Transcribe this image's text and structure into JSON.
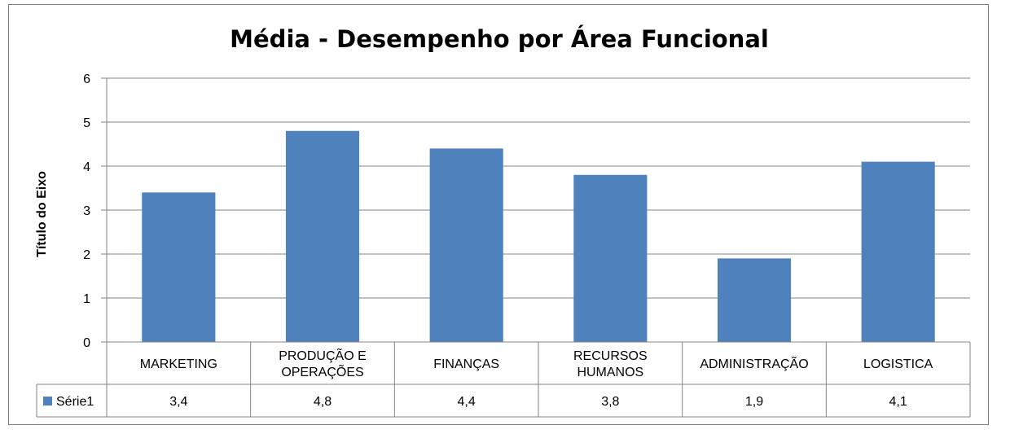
{
  "chart_data": {
    "type": "bar",
    "title": "Média - Desempenho por Área Funcional",
    "ylabel": "Título do Eixo",
    "xlabel": "",
    "categories": [
      [
        "MARKETING"
      ],
      [
        "PRODUÇÃO E",
        "OPERAÇÕES"
      ],
      [
        "FINANÇAS"
      ],
      [
        "RECURSOS",
        "HUMANOS"
      ],
      [
        "ADMINISTRAÇÃO"
      ],
      [
        "LOGISTICA"
      ]
    ],
    "series": [
      {
        "name": "Série1",
        "values": [
          3.4,
          4.8,
          4.4,
          3.8,
          1.9,
          4.1
        ],
        "value_labels": [
          "3,4",
          "4,8",
          "4,4",
          "3,8",
          "1,9",
          "4,1"
        ],
        "color": "#4f81bd"
      }
    ],
    "ylim": [
      0,
      6
    ],
    "yticks": [
      "0",
      "1",
      "2",
      "3",
      "4",
      "5",
      "6"
    ],
    "grid": true,
    "legend": "data-table",
    "data_table": true
  }
}
